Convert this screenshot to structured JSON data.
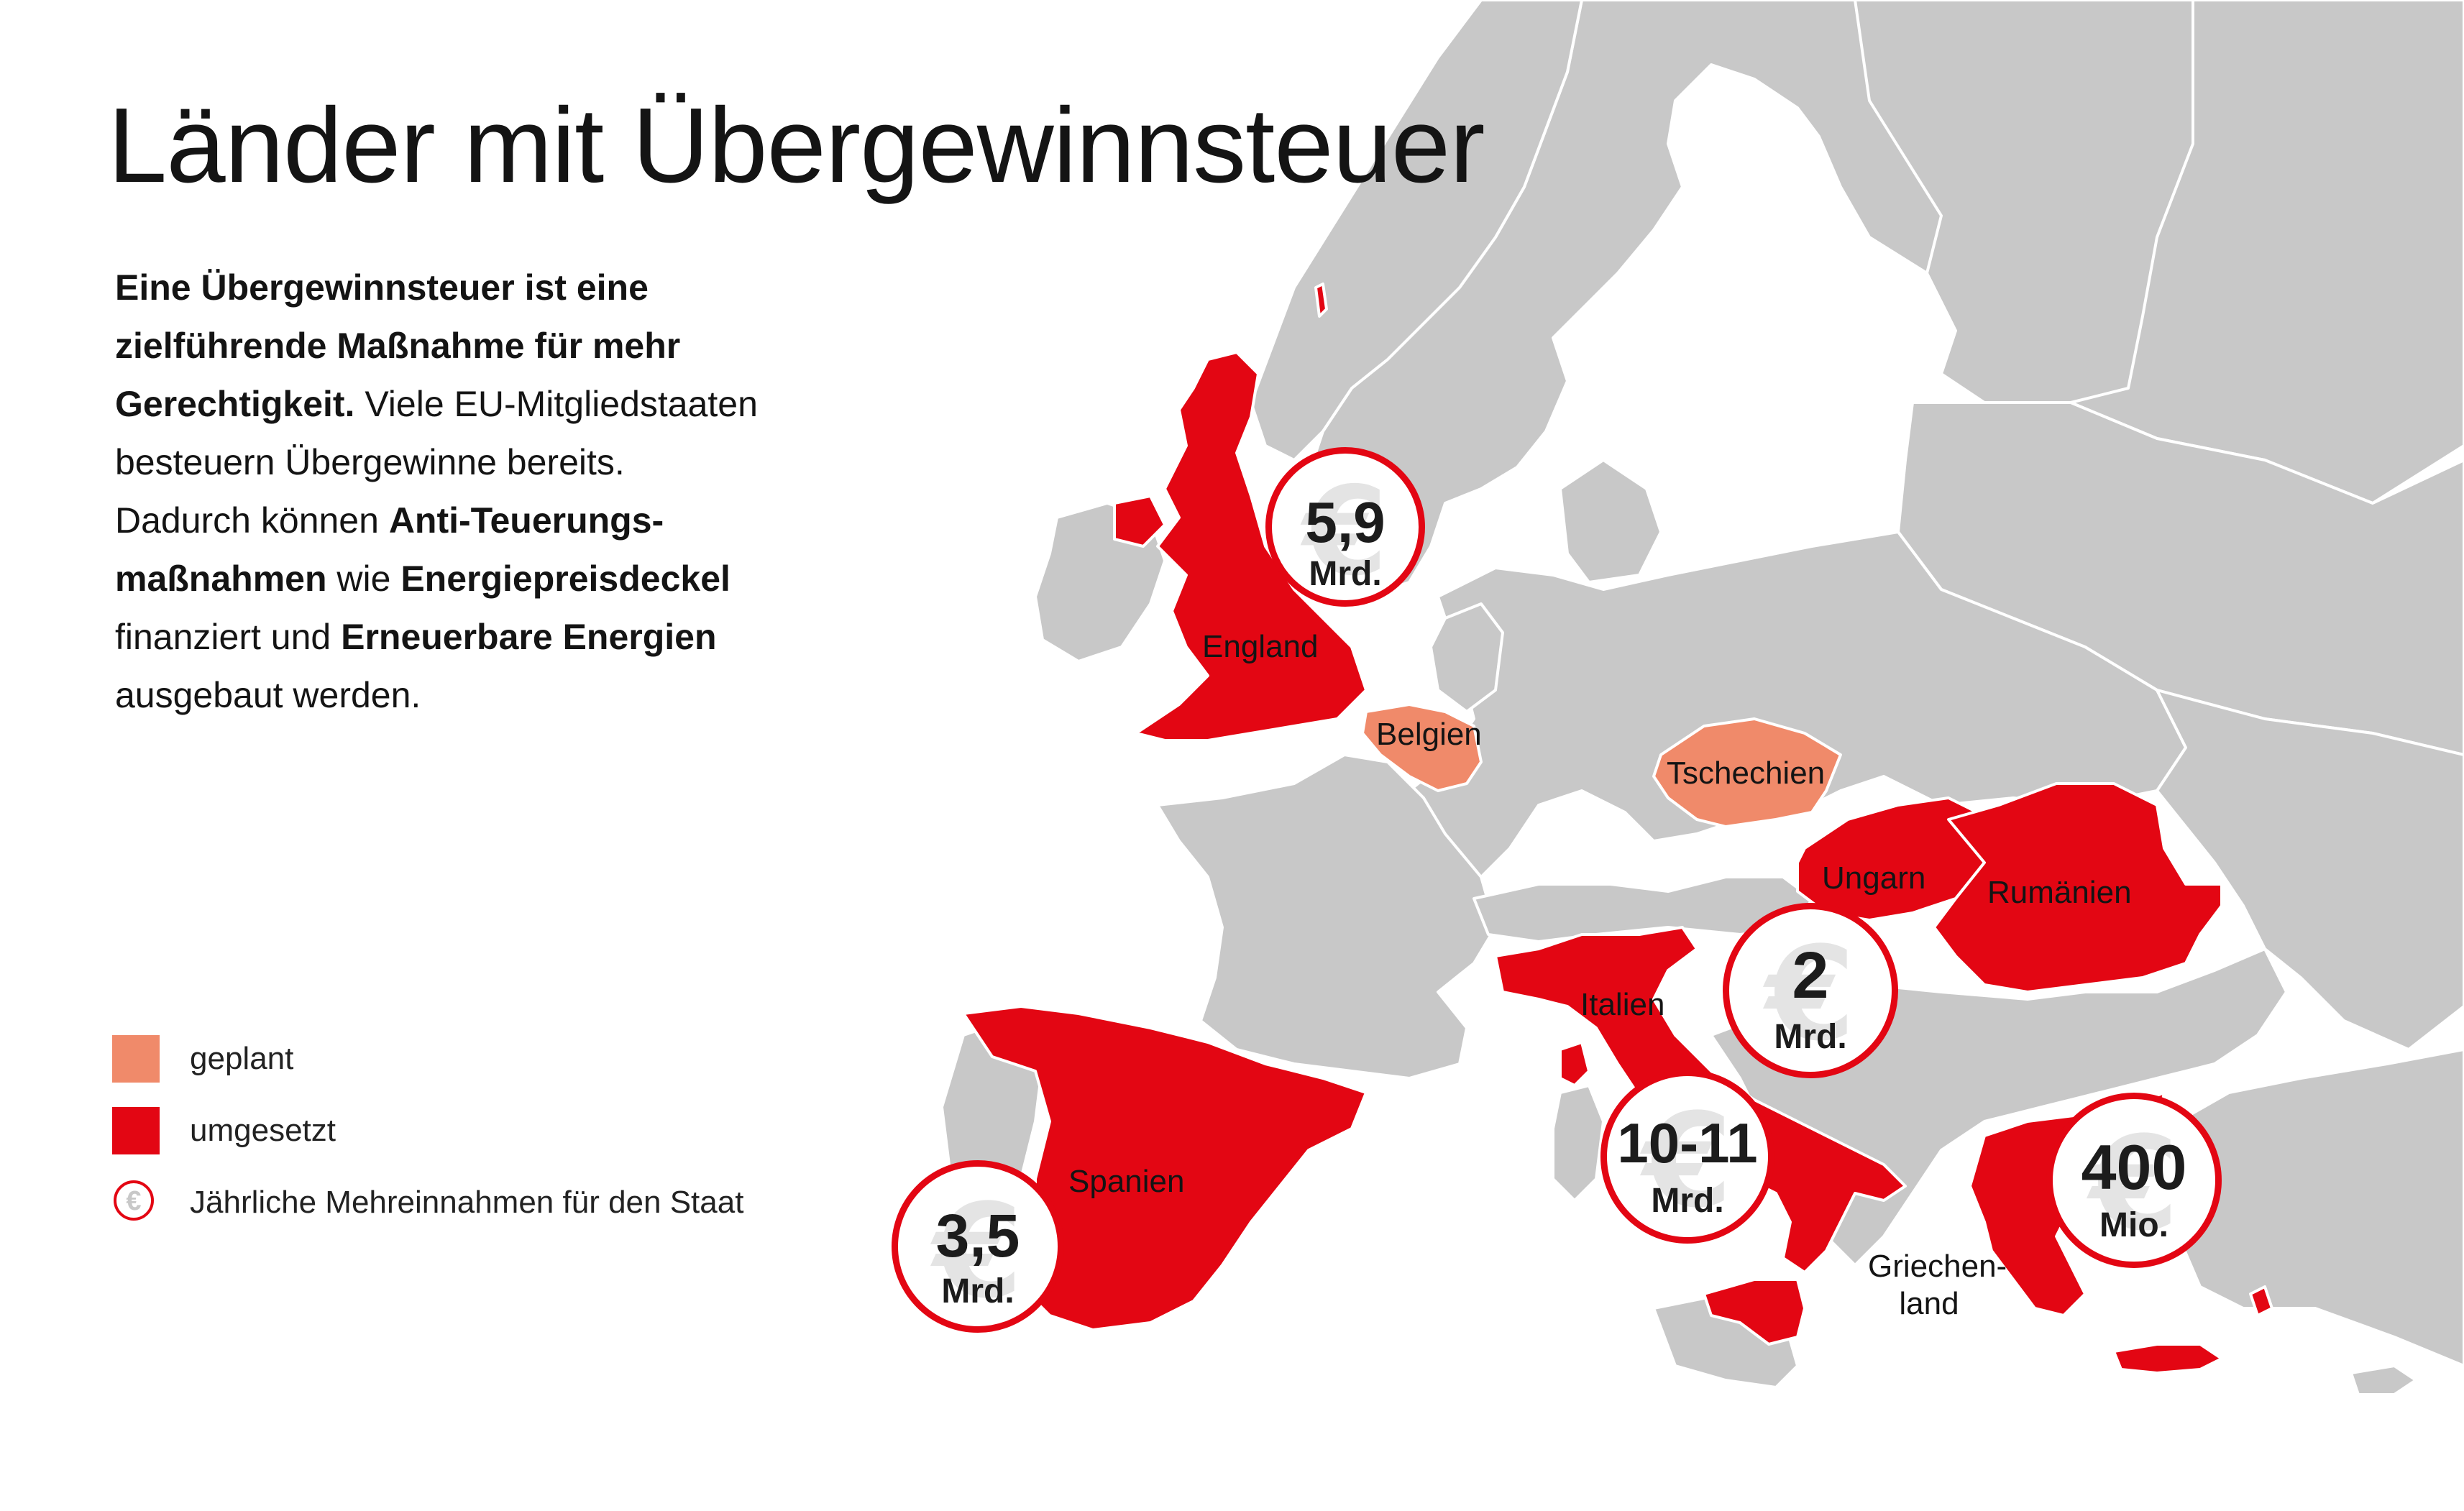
{
  "title": "Länder mit Übergewinnsteuer",
  "intro": {
    "l1": "Eine Übergewinnsteuer ist eine",
    "l2": "zielführende Maßnahme für mehr",
    "l3_bold": "Gerechtigkeit.",
    "l3_rest": " Viele EU-Mitgliedstaaten",
    "l4": "besteuern Übergewinne bereits.",
    "l5_pre": "Dadurch können ",
    "l5_bold": "Anti-Teuerungs-",
    "l6_bold": "maßnahmen",
    "l6_mid": " wie ",
    "l6_bold2": "Energiepreisdeckel",
    "l7_pre": "finanziert und ",
    "l7_bold": "Erneuerbare Energien",
    "l8": "ausgebaut werden."
  },
  "legend": {
    "planned": {
      "label": "geplant",
      "color": "#f08a6a"
    },
    "implemented": {
      "label": "umgesetzt",
      "color": "#e30613"
    },
    "revenue": {
      "label": "Jährliche Mehreinnahmen für den Staat",
      "icon": "euro-coin-icon",
      "symbol": "€"
    }
  },
  "colors": {
    "background": "#ffffff",
    "land": "#c8c8c8",
    "borders": "#ffffff",
    "accent": "#e30613"
  },
  "countries": [
    {
      "name": "England",
      "status": "umgesetzt"
    },
    {
      "name": "Belgien",
      "status": "geplant"
    },
    {
      "name": "Tschechien",
      "status": "geplant"
    },
    {
      "name": "Ungarn",
      "status": "umgesetzt"
    },
    {
      "name": "Rumänien",
      "status": "umgesetzt"
    },
    {
      "name": "Italien",
      "status": "umgesetzt"
    },
    {
      "name": "Spanien",
      "status": "umgesetzt"
    },
    {
      "name_l1": "Griechen-",
      "name_l2": "land",
      "status": "umgesetzt"
    }
  ],
  "revenues": [
    {
      "country": "England",
      "value": "5,9",
      "unit": "Mrd."
    },
    {
      "country": "Ungarn",
      "value": "2",
      "unit": "Mrd."
    },
    {
      "country": "Italien",
      "value": "10-11",
      "unit": "Mrd."
    },
    {
      "country": "Spanien",
      "value": "3,5",
      "unit": "Mrd."
    },
    {
      "country": "Griechenland",
      "value": "400",
      "unit": "Mio."
    }
  ],
  "euro_symbol": "€"
}
